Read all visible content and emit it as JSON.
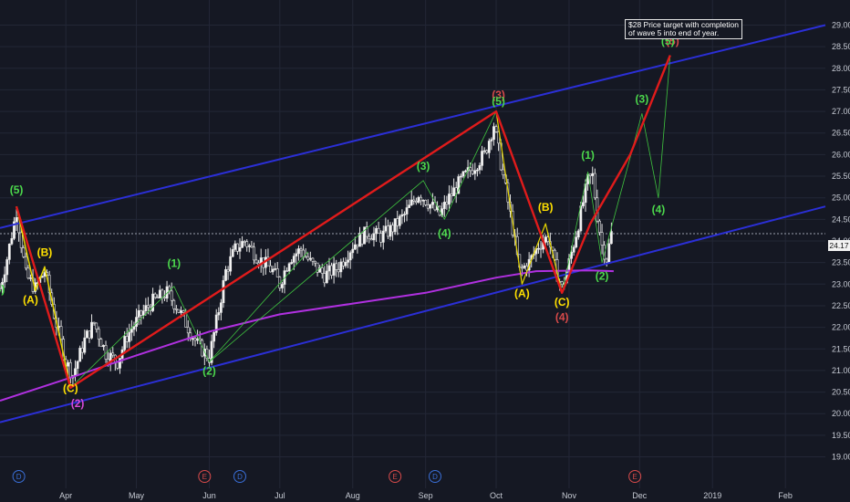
{
  "chart_data": {
    "type": "candlestick",
    "title": "",
    "note": {
      "line1": "$28 Price target with completion",
      "line2": "of wave 5 into end of year."
    },
    "y_axis": {
      "ylim": [
        18.8,
        29.2
      ],
      "ticks": [
        "19.00",
        "19.50",
        "20.00",
        "20.50",
        "21.00",
        "21.50",
        "22.00",
        "22.50",
        "23.00",
        "23.50",
        "24.00",
        "24.50",
        "25.00",
        "25.50",
        "26.00",
        "26.50",
        "27.00",
        "27.50",
        "28.00",
        "28.50",
        "29.00"
      ],
      "current_price": "24.17"
    },
    "x_axis": {
      "ticks": [
        "Apr",
        "May",
        "Jun",
        "Jul",
        "Aug",
        "Sep",
        "Oct",
        "Nov",
        "Dec",
        "2019",
        "Feb"
      ],
      "tick_days": [
        60,
        90,
        121,
        151,
        182,
        213,
        243,
        274,
        304,
        335,
        366
      ]
    },
    "x_range_days": [
      32,
      383
    ],
    "event_markers": [
      {
        "label": "D",
        "day": 40,
        "color": "#3a6fd8"
      },
      {
        "label": "E",
        "day": 119,
        "color": "#d84a4a"
      },
      {
        "label": "D",
        "day": 134,
        "color": "#3a6fd8"
      },
      {
        "label": "E",
        "day": 200,
        "color": "#d84a4a"
      },
      {
        "label": "D",
        "day": 217,
        "color": "#3a6fd8"
      },
      {
        "label": "E",
        "day": 302,
        "color": "#d84a4a"
      }
    ],
    "channel_upper": [
      [
        32,
        24.3
      ],
      [
        383,
        29.0
      ]
    ],
    "channel_lower": [
      [
        32,
        19.8
      ],
      [
        383,
        24.8
      ]
    ],
    "moving_average": [
      [
        32,
        20.3
      ],
      [
        60,
        20.8
      ],
      [
        90,
        21.35
      ],
      [
        121,
        21.9
      ],
      [
        151,
        22.3
      ],
      [
        182,
        22.55
      ],
      [
        213,
        22.8
      ],
      [
        243,
        23.15
      ],
      [
        260,
        23.3
      ],
      [
        283,
        23.32
      ],
      [
        293,
        23.3
      ]
    ],
    "red_wave_path": [
      [
        39,
        24.8
      ],
      [
        62,
        20.6
      ],
      [
        243,
        27.0
      ],
      [
        271,
        22.8
      ],
      [
        283,
        24.4
      ],
      [
        300,
        26.0
      ],
      [
        317,
        28.3
      ]
    ],
    "yellow_wave_path": [
      [
        39,
        24.8
      ],
      [
        47,
        22.85
      ],
      [
        51,
        23.4
      ],
      [
        62,
        20.6
      ]
    ],
    "yellow_correction_path": [
      [
        243,
        27.0
      ],
      [
        254,
        23.0
      ],
      [
        264,
        24.4
      ],
      [
        271,
        22.8
      ]
    ],
    "green_wave_path_1": [
      [
        62,
        20.6
      ],
      [
        106,
        22.95
      ],
      [
        121,
        21.2
      ],
      [
        212,
        25.4
      ],
      [
        221,
        24.5
      ],
      [
        243,
        27.0
      ]
    ],
    "green_wave_path_1b": [
      [
        121,
        21.2
      ],
      [
        163,
        23.75
      ]
    ],
    "green_wave_path_2": [
      [
        271,
        22.8
      ],
      [
        282,
        25.6
      ],
      [
        288,
        23.5
      ],
      [
        305,
        26.95
      ],
      [
        312,
        25.0
      ],
      [
        317,
        28.3
      ]
    ],
    "wave_labels": [
      {
        "text": "(5)",
        "day": 39,
        "price": 25.1,
        "color": "#4cd94c"
      },
      {
        "text": "(B)",
        "day": 51,
        "price": 23.65,
        "color": "#ffe000"
      },
      {
        "text": "(A)",
        "day": 45,
        "price": 22.55,
        "color": "#ffe000"
      },
      {
        "text": "(C)",
        "day": 62,
        "price": 20.5,
        "color": "#ffe000"
      },
      {
        "text": "(2)",
        "day": 65,
        "price": 20.15,
        "color": "#d84ad8"
      },
      {
        "text": "(1)",
        "day": 106,
        "price": 23.4,
        "color": "#4cd94c"
      },
      {
        "text": "(2)",
        "day": 121,
        "price": 20.9,
        "color": "#4cd94c"
      },
      {
        "text": "(3)",
        "day": 212,
        "price": 25.65,
        "color": "#4cd94c"
      },
      {
        "text": "(4)",
        "day": 221,
        "price": 24.1,
        "color": "#4cd94c"
      },
      {
        "text": "(3)",
        "day": 244,
        "price": 27.3,
        "color": "#d84a4a"
      },
      {
        "text": "(5)",
        "day": 244,
        "price": 27.15,
        "color": "#4cd94c"
      },
      {
        "text": "(A)",
        "day": 254,
        "price": 22.7,
        "color": "#ffe000"
      },
      {
        "text": "(B)",
        "day": 264,
        "price": 24.7,
        "color": "#ffe000"
      },
      {
        "text": "(C)",
        "day": 271,
        "price": 22.5,
        "color": "#ffe000"
      },
      {
        "text": "(4)",
        "day": 271,
        "price": 22.15,
        "color": "#d84a4a"
      },
      {
        "text": "(1)",
        "day": 282,
        "price": 25.9,
        "color": "#4cd94c"
      },
      {
        "text": "(2)",
        "day": 288,
        "price": 23.1,
        "color": "#4cd94c"
      },
      {
        "text": "(3)",
        "day": 305,
        "price": 27.2,
        "color": "#4cd94c"
      },
      {
        "text": "(4)",
        "day": 312,
        "price": 24.65,
        "color": "#4cd94c"
      },
      {
        "text": "(5)",
        "day": 318,
        "price": 28.55,
        "color": "#d84a4a"
      },
      {
        "text": "(5)",
        "day": 316,
        "price": 28.55,
        "color": "#4cd94c"
      },
      {
        "text": "4)",
        "day": 32,
        "price": 22.8,
        "color": "#4cd94c"
      }
    ],
    "price_path": [
      [
        32,
        22.9
      ],
      [
        35,
        23.6
      ],
      [
        39,
        24.7
      ],
      [
        43,
        23.2
      ],
      [
        47,
        22.9
      ],
      [
        51,
        23.3
      ],
      [
        55,
        22.3
      ],
      [
        60,
        21.2
      ],
      [
        63,
        20.9
      ],
      [
        68,
        21.7
      ],
      [
        72,
        22.1
      ],
      [
        77,
        21.4
      ],
      [
        82,
        21.2
      ],
      [
        86,
        21.8
      ],
      [
        92,
        22.3
      ],
      [
        97,
        22.6
      ],
      [
        103,
        22.8
      ],
      [
        107,
        22.5
      ],
      [
        112,
        22.0
      ],
      [
        116,
        21.6
      ],
      [
        121,
        21.3
      ],
      [
        125,
        22.4
      ],
      [
        128,
        23.3
      ],
      [
        132,
        23.8
      ],
      [
        136,
        24.0
      ],
      [
        142,
        23.6
      ],
      [
        148,
        23.3
      ],
      [
        151,
        23.0
      ],
      [
        155,
        23.6
      ],
      [
        160,
        23.8
      ],
      [
        164,
        23.5
      ],
      [
        170,
        23.2
      ],
      [
        176,
        23.4
      ],
      [
        182,
        23.9
      ],
      [
        188,
        24.2
      ],
      [
        194,
        24.1
      ],
      [
        199,
        24.3
      ],
      [
        204,
        24.6
      ],
      [
        210,
        25.1
      ],
      [
        214,
        24.9
      ],
      [
        219,
        24.6
      ],
      [
        223,
        25.0
      ],
      [
        228,
        25.4
      ],
      [
        233,
        25.7
      ],
      [
        238,
        26.0
      ],
      [
        242,
        26.7
      ],
      [
        245,
        25.8
      ],
      [
        249,
        24.6
      ],
      [
        253,
        23.3
      ],
      [
        257,
        23.5
      ],
      [
        261,
        23.9
      ],
      [
        265,
        24.1
      ],
      [
        268,
        23.4
      ],
      [
        271,
        22.9
      ],
      [
        274,
        23.5
      ],
      [
        278,
        24.4
      ],
      [
        282,
        25.4
      ],
      [
        284,
        25.5
      ],
      [
        286,
        24.6
      ],
      [
        288,
        23.9
      ],
      [
        290,
        23.6
      ],
      [
        292,
        24.17
      ]
    ]
  }
}
